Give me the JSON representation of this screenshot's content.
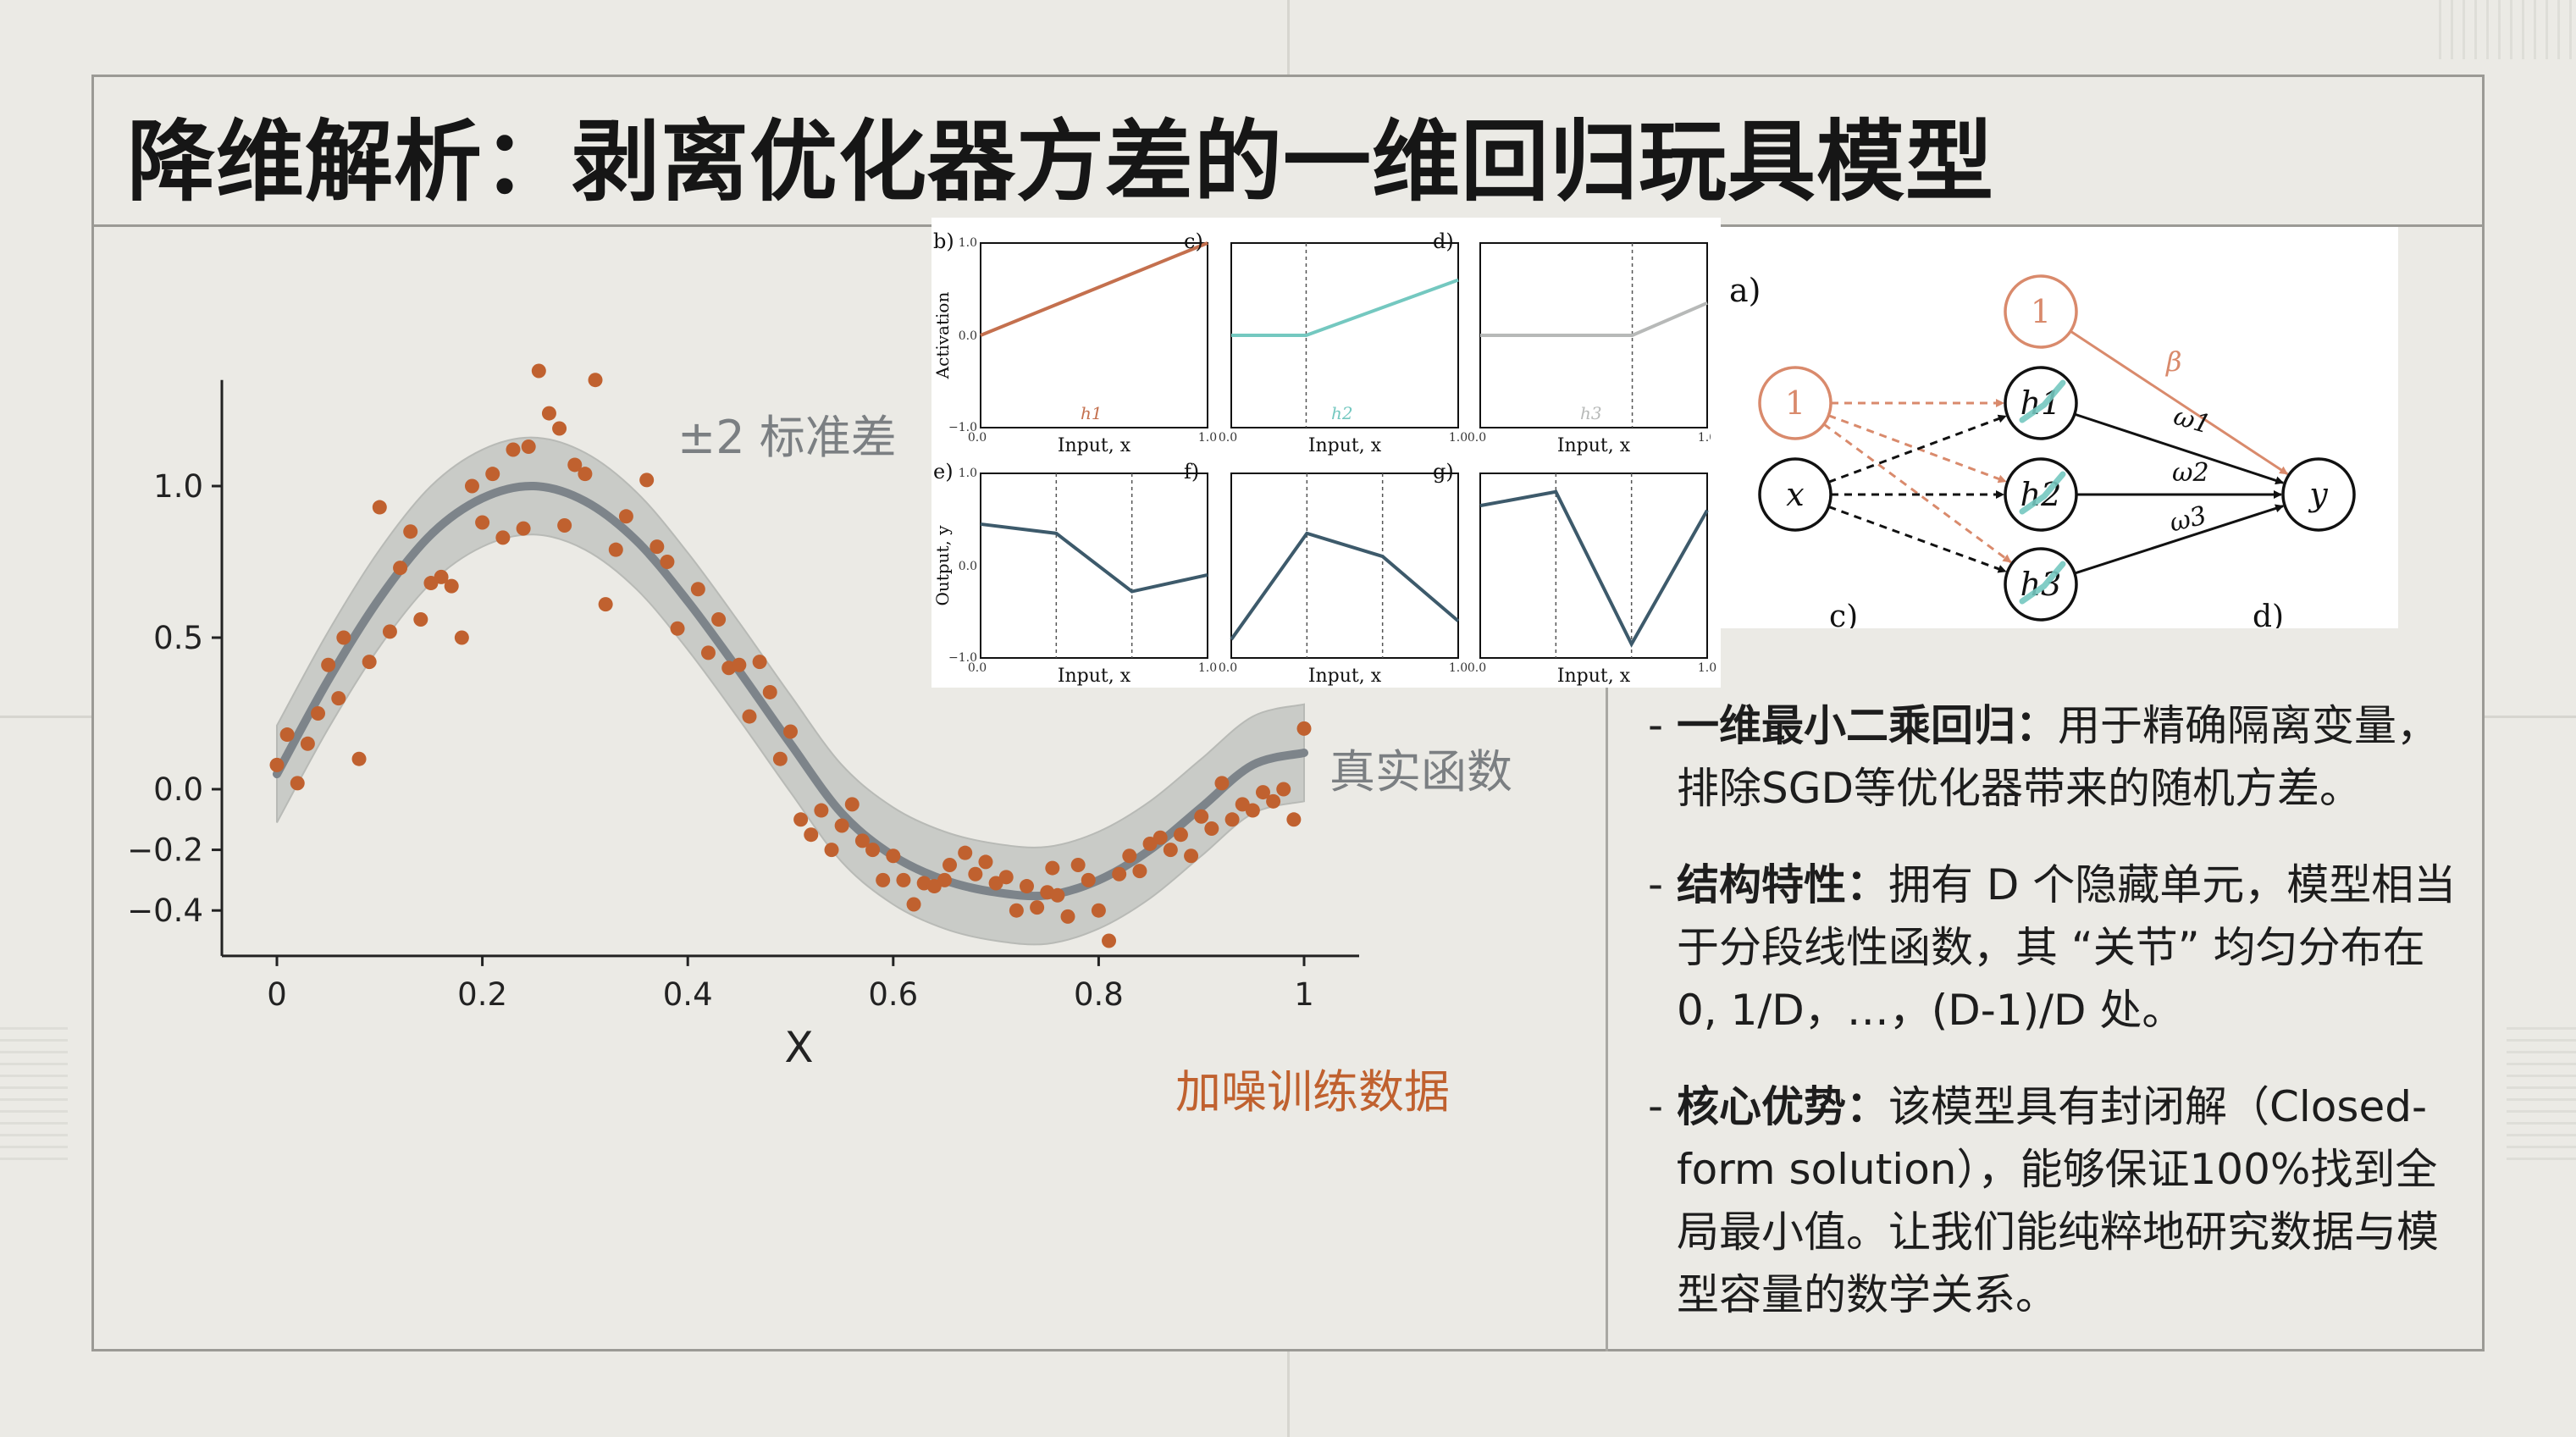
{
  "title": "降维解析：剥离优化器方差的一维回归玩具模型",
  "chart_data": {
    "type": "scatter",
    "xlabel": "X",
    "ylabel": "",
    "xlim": [
      -0.02,
      1.05
    ],
    "ylim": [
      -0.55,
      1.35
    ],
    "x_ticks": [
      "0",
      "0.2",
      "0.4",
      "0.6",
      "0.8",
      "1"
    ],
    "x_tick_values": [
      0,
      0.2,
      0.4,
      0.6,
      0.8,
      1.0
    ],
    "y_ticks": [
      "1.0",
      "0.5",
      "0.0",
      "−0.2",
      "−0.4"
    ],
    "y_tick_values": [
      1.0,
      0.5,
      0.0,
      -0.2,
      -0.4
    ],
    "true_function": {
      "label": "真实函数",
      "color": "#7d848a",
      "x": [
        0,
        0.05,
        0.1,
        0.15,
        0.2,
        0.25,
        0.3,
        0.35,
        0.4,
        0.45,
        0.5,
        0.55,
        0.6,
        0.65,
        0.7,
        0.75,
        0.8,
        0.85,
        0.9,
        0.95,
        1.0
      ],
      "y": [
        0.05,
        0.36,
        0.63,
        0.84,
        0.96,
        1.0,
        0.95,
        0.82,
        0.62,
        0.39,
        0.15,
        -0.08,
        -0.22,
        -0.3,
        -0.34,
        -0.35,
        -0.3,
        -0.2,
        -0.06,
        0.08,
        0.12
      ]
    },
    "band": {
      "label": "±2 标准差",
      "half_width": 0.16,
      "color": "#c8cac6"
    },
    "noisy_data": {
      "label": "加噪训练数据",
      "color": "#c0612f",
      "points": [
        [
          0.0,
          0.08
        ],
        [
          0.01,
          0.18
        ],
        [
          0.02,
          0.02
        ],
        [
          0.03,
          0.15
        ],
        [
          0.04,
          0.25
        ],
        [
          0.05,
          0.41
        ],
        [
          0.06,
          0.3
        ],
        [
          0.065,
          0.5
        ],
        [
          0.08,
          0.1
        ],
        [
          0.09,
          0.42
        ],
        [
          0.1,
          0.93
        ],
        [
          0.11,
          0.52
        ],
        [
          0.12,
          0.73
        ],
        [
          0.13,
          0.85
        ],
        [
          0.14,
          0.56
        ],
        [
          0.15,
          0.68
        ],
        [
          0.16,
          0.7
        ],
        [
          0.17,
          0.67
        ],
        [
          0.18,
          0.5
        ],
        [
          0.19,
          1.0
        ],
        [
          0.2,
          0.88
        ],
        [
          0.21,
          1.04
        ],
        [
          0.22,
          0.83
        ],
        [
          0.23,
          1.12
        ],
        [
          0.24,
          0.86
        ],
        [
          0.245,
          1.13
        ],
        [
          0.255,
          1.38
        ],
        [
          0.265,
          1.24
        ],
        [
          0.275,
          1.19
        ],
        [
          0.28,
          0.87
        ],
        [
          0.29,
          1.07
        ],
        [
          0.3,
          1.04
        ],
        [
          0.31,
          1.35
        ],
        [
          0.32,
          0.61
        ],
        [
          0.33,
          0.79
        ],
        [
          0.34,
          0.9
        ],
        [
          0.36,
          1.02
        ],
        [
          0.37,
          0.8
        ],
        [
          0.38,
          0.75
        ],
        [
          0.39,
          0.53
        ],
        [
          0.41,
          0.66
        ],
        [
          0.42,
          0.45
        ],
        [
          0.43,
          0.56
        ],
        [
          0.44,
          0.4
        ],
        [
          0.45,
          0.41
        ],
        [
          0.46,
          0.24
        ],
        [
          0.47,
          0.42
        ],
        [
          0.48,
          0.32
        ],
        [
          0.49,
          0.1
        ],
        [
          0.5,
          0.19
        ],
        [
          0.51,
          -0.1
        ],
        [
          0.52,
          -0.15
        ],
        [
          0.53,
          -0.07
        ],
        [
          0.54,
          -0.2
        ],
        [
          0.55,
          -0.12
        ],
        [
          0.56,
          -0.05
        ],
        [
          0.57,
          -0.17
        ],
        [
          0.58,
          -0.2
        ],
        [
          0.59,
          -0.3
        ],
        [
          0.6,
          -0.22
        ],
        [
          0.61,
          -0.3
        ],
        [
          0.62,
          -0.38
        ],
        [
          0.63,
          -0.31
        ],
        [
          0.64,
          -0.32
        ],
        [
          0.65,
          -0.3
        ],
        [
          0.655,
          -0.25
        ],
        [
          0.67,
          -0.21
        ],
        [
          0.68,
          -0.28
        ],
        [
          0.69,
          -0.24
        ],
        [
          0.7,
          -0.31
        ],
        [
          0.71,
          -0.29
        ],
        [
          0.72,
          -0.4
        ],
        [
          0.73,
          -0.32
        ],
        [
          0.74,
          -0.39
        ],
        [
          0.75,
          -0.34
        ],
        [
          0.755,
          -0.26
        ],
        [
          0.76,
          -0.35
        ],
        [
          0.77,
          -0.42
        ],
        [
          0.78,
          -0.25
        ],
        [
          0.79,
          -0.3
        ],
        [
          0.8,
          -0.4
        ],
        [
          0.81,
          -0.5
        ],
        [
          0.82,
          -0.28
        ],
        [
          0.83,
          -0.22
        ],
        [
          0.84,
          -0.27
        ],
        [
          0.85,
          -0.18
        ],
        [
          0.86,
          -0.16
        ],
        [
          0.87,
          -0.2
        ],
        [
          0.88,
          -0.15
        ],
        [
          0.89,
          -0.22
        ],
        [
          0.9,
          -0.09
        ],
        [
          0.91,
          -0.13
        ],
        [
          0.92,
          0.02
        ],
        [
          0.93,
          -0.1
        ],
        [
          0.94,
          -0.05
        ],
        [
          0.95,
          -0.07
        ],
        [
          0.96,
          -0.01
        ],
        [
          0.97,
          -0.04
        ],
        [
          0.98,
          0.0
        ],
        [
          0.99,
          -0.1
        ],
        [
          1.0,
          0.2
        ]
      ]
    }
  },
  "insets": {
    "top": [
      {
        "id": "b)",
        "unit": "h1",
        "color": "#c4704e",
        "y": [
          0,
          1
        ],
        "knot": null
      },
      {
        "id": "c)",
        "unit": "h2",
        "color": "#74c8c0",
        "y": [
          0,
          0,
          0.6
        ],
        "knot": 0.33
      },
      {
        "id": "d)",
        "unit": "h3",
        "color": "#b7b9b8",
        "y": [
          0,
          0,
          0.35
        ],
        "knot": 0.67
      }
    ],
    "bottom": [
      {
        "id": "e)",
        "color": "#3d5a6b",
        "y": [
          0.45,
          0.35,
          -0.28,
          -0.1
        ]
      },
      {
        "id": "f)",
        "color": "#3d5a6b",
        "y": [
          -0.8,
          0.35,
          0.1,
          -0.6
        ]
      },
      {
        "id": "g)",
        "color": "#3d5a6b",
        "y": [
          0.65,
          0.8,
          -0.85,
          0.6
        ]
      }
    ],
    "top_ylabel": "Activation",
    "bottom_ylabel": "Output, y",
    "xlabel": "Input, x",
    "ymax_label": "1.0",
    "ymid_label": "0.0",
    "ymin_label": "−1.0",
    "xmin_label": "0.0",
    "xmax_label": "1.0"
  },
  "network": {
    "panel_label": "a)",
    "bias_label": "1",
    "input_label": "x",
    "output_label": "y",
    "hidden_labels": [
      "h1",
      "h2",
      "h3"
    ],
    "weight_labels": [
      "ω1",
      "ω2",
      "ω3"
    ],
    "beta_label": "β",
    "cut_labels": [
      "c)",
      "d)"
    ],
    "bias_color": "#d98a6c",
    "hidden_mark_color": "#74c8c0"
  },
  "bullets": [
    {
      "head": "一维最小二乘回归：",
      "body": "用于精确隔离变量，排除SGD等优化器带来的随机方差。"
    },
    {
      "head": "结构特性：",
      "body": "拥有 D 个隐藏单元，模型相当于分段线性函数，其 “关节” 均匀分布在 0, 1/D，…，(D-1)/D 处。"
    },
    {
      "head": "核心优势：",
      "body": "该模型具有封闭解（Closed-form solution），能够保证100%找到全局最小值。让我们能纯粹地研究数据与模型容量的数学关系。"
    }
  ]
}
